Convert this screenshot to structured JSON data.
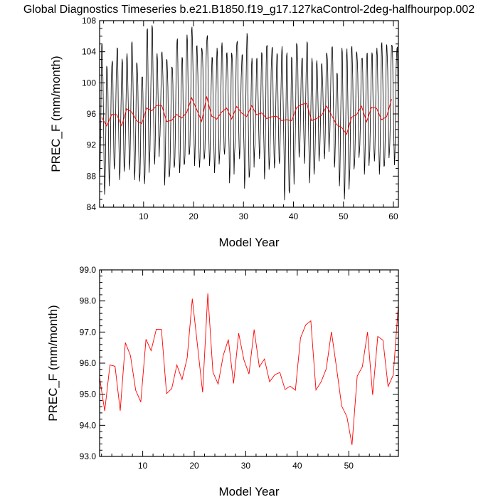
{
  "title": "Global Diagnostics Timeseries b.e21.B1850.f19_g17.127kaControl-2deg-halfhourpop.002",
  "colors": {
    "monthly": "#000000",
    "annual": "#ff0000",
    "axis": "#000000"
  },
  "chart_data": [
    {
      "type": "line",
      "xlabel": "Model Year",
      "ylabel": "PREC_F (mm/month)",
      "xlim": [
        1.2,
        61.0
      ],
      "ylim": [
        84,
        108
      ],
      "xticks": [
        10,
        20,
        30,
        40,
        50,
        60
      ],
      "yticks": [
        84,
        88,
        92,
        96,
        100,
        104,
        108
      ],
      "ytick_labels": [
        "84",
        "88",
        "92",
        "96",
        "100",
        "104",
        "108"
      ],
      "grid": false,
      "series": [
        {
          "name": "monthly",
          "annual_peaks": [
            105.0,
            102.8,
            103.5,
            104.6,
            103.1,
            103.8,
            105.3,
            103.0,
            101.6,
            107.3,
            107.4,
            103.8,
            104.0,
            103.3,
            102.9,
            106.1,
            103.3,
            106.2,
            107.2,
            104.9,
            105.2,
            106.7,
            103.3,
            104.5,
            105.2,
            103.9,
            104.4,
            106.1,
            103.8,
            106.4,
            103.2,
            103.2,
            104.2,
            105.9,
            104.9,
            103.8,
            104.7,
            103.9,
            103.5,
            105.9,
            103.6,
            105.3,
            103.2,
            102.9,
            102.5,
            104.4,
            105.2,
            101.3,
            104.5,
            104.4,
            104.7,
            104.4,
            103.9,
            104.1,
            103.9,
            104.5,
            105.2,
            105.2,
            105.7,
            105.0
          ],
          "annual_troughs": [
            87.6,
            85.6,
            87.8,
            89.4,
            87.5,
            89.3,
            88.8,
            87.5,
            87.3,
            87.0,
            90.2,
            89.5,
            92.4,
            86.8,
            88.1,
            89.4,
            88.4,
            89.6,
            90.9,
            89.3,
            89.1,
            90.4,
            89.3,
            88.4,
            90.4,
            90.8,
            87.1,
            90.7,
            90.2,
            86.4,
            88.1,
            91.1,
            90.2,
            87.6,
            89.6,
            89.0,
            89.6,
            84.9,
            85.8,
            89.3,
            91.1,
            89.6,
            87.1,
            89.0,
            90.8,
            90.2,
            92.8,
            89.1,
            86.7,
            85.0,
            87.8,
            89.4,
            91.1,
            88.2,
            90.4,
            89.9,
            88.2,
            89.3,
            91.1,
            89.4
          ]
        },
        {
          "name": "annual mean",
          "ref": "annual"
        }
      ]
    },
    {
      "type": "line",
      "xlabel": "Model Year",
      "ylabel": "PREC_F (mm/month)",
      "xlim": [
        1.63,
        59.63
      ],
      "ylim": [
        93.0,
        99.0
      ],
      "xticks": [
        10,
        20,
        30,
        40,
        50
      ],
      "yticks": [
        93.0,
        94.0,
        95.0,
        96.0,
        97.0,
        98.0,
        99.0
      ],
      "ytick_labels": [
        "93.0",
        "94.0",
        "95.0",
        "96.0",
        "97.0",
        "98.0",
        "99.0"
      ],
      "grid": false,
      "series": [
        {
          "name": "annual mean",
          "ref": "annual"
        }
      ]
    }
  ],
  "annual": {
    "x_start": 1.63,
    "values": [
      95.54,
      94.46,
      95.94,
      95.9,
      94.47,
      96.66,
      96.24,
      95.13,
      94.75,
      96.77,
      96.4,
      97.09,
      97.09,
      95.02,
      95.18,
      95.94,
      95.47,
      96.17,
      98.07,
      96.57,
      95.06,
      98.24,
      95.71,
      95.33,
      96.25,
      96.76,
      95.35,
      96.96,
      96.11,
      95.65,
      97.08,
      95.88,
      96.13,
      95.4,
      95.63,
      95.7,
      95.15,
      95.26,
      95.13,
      96.81,
      97.23,
      97.36,
      95.14,
      95.4,
      95.82,
      97.01,
      95.84,
      94.62,
      94.28,
      93.37,
      95.58,
      95.88,
      97.0,
      94.98,
      96.86,
      96.74,
      95.25,
      95.62,
      97.9
    ]
  }
}
